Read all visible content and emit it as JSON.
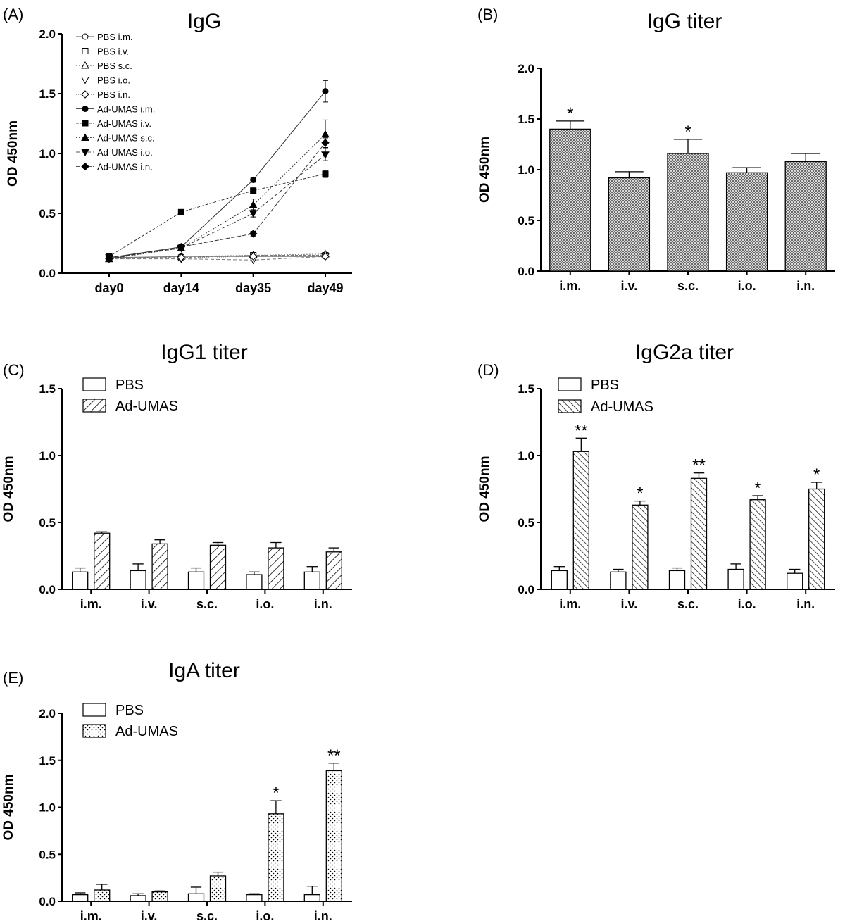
{
  "chart_data": [
    {
      "id": "A",
      "panel": "(A)",
      "type": "line",
      "title": "IgG",
      "ylabel": "OD 450nm",
      "xlabel": "",
      "x": [
        "day0",
        "day14",
        "day35",
        "day49"
      ],
      "ylim": [
        0,
        2.0
      ],
      "yticks": [
        0.0,
        0.5,
        1.0,
        1.5,
        2.0
      ],
      "series": [
        {
          "name": "PBS i.m.",
          "marker": "circle-open",
          "values": [
            0.13,
            0.14,
            0.14,
            0.14
          ]
        },
        {
          "name": "PBS i.v.",
          "marker": "square-open",
          "values": [
            0.13,
            0.13,
            0.15,
            0.15
          ]
        },
        {
          "name": "PBS s.c.",
          "marker": "triangle-up-open",
          "values": [
            0.12,
            0.14,
            0.15,
            0.16
          ]
        },
        {
          "name": "PBS i.o.",
          "marker": "triangle-down-open",
          "values": [
            0.12,
            0.12,
            0.11,
            0.14
          ]
        },
        {
          "name": "PBS i.n.",
          "marker": "diamond-open",
          "values": [
            0.12,
            0.13,
            0.14,
            0.14
          ]
        },
        {
          "name": "Ad-UMAS i.m.",
          "marker": "circle",
          "values": [
            0.13,
            0.22,
            0.78,
            1.52
          ],
          "errors": [
            0.01,
            0.02,
            0.02,
            0.09
          ]
        },
        {
          "name": "Ad-UMAS i.v.",
          "marker": "square",
          "values": [
            0.14,
            0.51,
            0.69,
            0.83
          ],
          "errors": [
            0.01,
            0.01,
            0.02,
            0.03
          ]
        },
        {
          "name": "Ad-UMAS s.c.",
          "marker": "triangle-up",
          "values": [
            0.12,
            0.21,
            0.57,
            1.16
          ],
          "errors": [
            0.01,
            0.01,
            0.05,
            0.12
          ]
        },
        {
          "name": "Ad-UMAS i.o.",
          "marker": "triangle-down",
          "values": [
            0.13,
            0.21,
            0.5,
            0.99
          ],
          "errors": [
            0.01,
            0.01,
            0.03,
            0.05
          ]
        },
        {
          "name": "Ad-UMAS i.n.",
          "marker": "diamond",
          "values": [
            0.12,
            0.22,
            0.33,
            1.09
          ],
          "errors": [
            0.01,
            0.01,
            0.02,
            0.04
          ]
        }
      ]
    },
    {
      "id": "B",
      "panel": "(B)",
      "type": "bar",
      "title": "IgG titer",
      "ylabel": "OD 450nm",
      "categories": [
        "i.m.",
        "i.v.",
        "s.c.",
        "i.o.",
        "i.n."
      ],
      "ylim": [
        0,
        2.0
      ],
      "yticks": [
        0.0,
        0.5,
        1.0,
        1.5,
        2.0
      ],
      "series": [
        {
          "name": "",
          "fill": "checker",
          "values": [
            1.4,
            0.92,
            1.16,
            0.97,
            1.08
          ],
          "errors": [
            0.08,
            0.06,
            0.14,
            0.05,
            0.08
          ],
          "significance": [
            "*",
            "",
            "*",
            "",
            ""
          ]
        }
      ]
    },
    {
      "id": "C",
      "panel": "(C)",
      "type": "bar",
      "title": "IgG1 titer",
      "ylabel": "OD 450nm",
      "categories": [
        "i.m.",
        "i.v.",
        "s.c.",
        "i.o.",
        "i.n."
      ],
      "ylim": [
        0,
        1.5
      ],
      "yticks": [
        0.0,
        0.5,
        1.0,
        1.5
      ],
      "series": [
        {
          "name": "PBS",
          "fill": "open",
          "values": [
            0.13,
            0.14,
            0.13,
            0.11,
            0.13
          ],
          "errors": [
            0.03,
            0.05,
            0.03,
            0.02,
            0.04
          ],
          "significance": [
            "",
            "",
            "",
            "",
            ""
          ]
        },
        {
          "name": "Ad-UMAS",
          "fill": "hatch-fwd",
          "values": [
            0.42,
            0.34,
            0.33,
            0.31,
            0.28
          ],
          "errors": [
            0.01,
            0.03,
            0.02,
            0.04,
            0.03
          ],
          "significance": [
            "",
            "",
            "",
            "",
            ""
          ]
        }
      ]
    },
    {
      "id": "D",
      "panel": "(D)",
      "type": "bar",
      "title": "IgG2a titer",
      "ylabel": "OD 450nm",
      "categories": [
        "i.m.",
        "i.v.",
        "s.c.",
        "i.o.",
        "i.n."
      ],
      "ylim": [
        0,
        1.5
      ],
      "yticks": [
        0.0,
        0.5,
        1.0,
        1.5
      ],
      "series": [
        {
          "name": "PBS",
          "fill": "open",
          "values": [
            0.14,
            0.13,
            0.14,
            0.15,
            0.12
          ],
          "errors": [
            0.03,
            0.02,
            0.02,
            0.04,
            0.03
          ],
          "significance": [
            "",
            "",
            "",
            "",
            ""
          ]
        },
        {
          "name": "Ad-UMAS",
          "fill": "hatch-back",
          "values": [
            1.03,
            0.63,
            0.83,
            0.67,
            0.75
          ],
          "errors": [
            0.1,
            0.03,
            0.04,
            0.03,
            0.05
          ],
          "significance": [
            "**",
            "*",
            "**",
            "*",
            "*"
          ]
        }
      ]
    },
    {
      "id": "E",
      "panel": "(E)",
      "type": "bar",
      "title": "IgA titer",
      "ylabel": "OD 450nm",
      "categories": [
        "i.m.",
        "i.v.",
        "s.c.",
        "i.o.",
        "i.n."
      ],
      "ylim": [
        0,
        2.0
      ],
      "yticks": [
        0.0,
        0.5,
        1.0,
        1.5,
        2.0
      ],
      "series": [
        {
          "name": "PBS",
          "fill": "open",
          "values": [
            0.07,
            0.06,
            0.08,
            0.07,
            0.07
          ],
          "errors": [
            0.02,
            0.02,
            0.07,
            0.01,
            0.09
          ],
          "significance": [
            "",
            "",
            "",
            "",
            ""
          ]
        },
        {
          "name": "Ad-UMAS",
          "fill": "dots",
          "values": [
            0.12,
            0.1,
            0.27,
            0.93,
            1.39
          ],
          "errors": [
            0.06,
            0.01,
            0.04,
            0.14,
            0.08
          ],
          "significance": [
            "",
            "",
            "",
            "*",
            "**"
          ]
        }
      ]
    }
  ]
}
